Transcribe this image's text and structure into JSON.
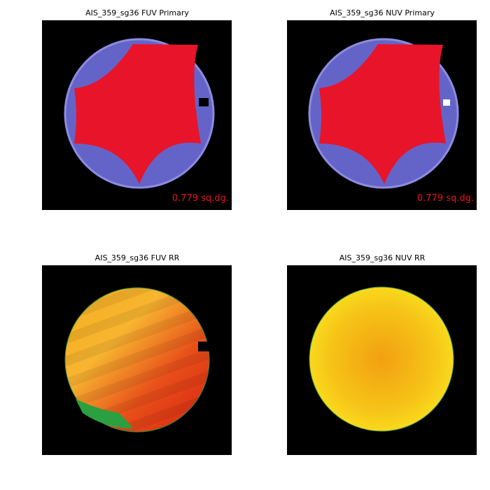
{
  "panels": [
    {
      "title": "AIS_359_sg36 FUV Primary",
      "annotation": "0.779 sq.dg."
    },
    {
      "title": "AIS_359_sg36 NUV Primary",
      "annotation": "0.779 sq.dg."
    },
    {
      "title": "AIS_359_sg36 FUV RR"
    },
    {
      "title": "AIS_359_sg36 NUV RR"
    }
  ]
}
